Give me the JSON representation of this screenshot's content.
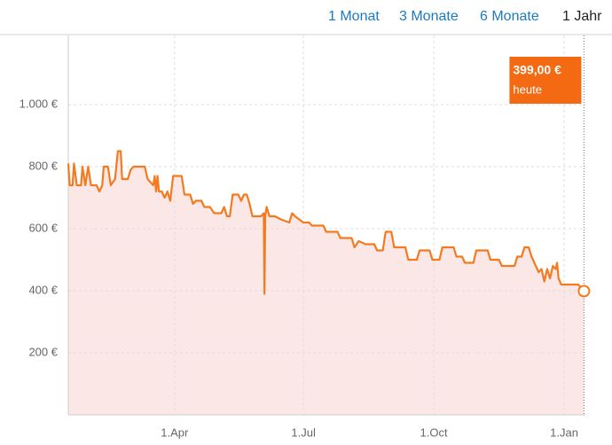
{
  "tabs": [
    "1 Monat",
    "3 Monate",
    "6 Monate",
    "1 Jahr"
  ],
  "active_tab": 3,
  "chart_data": {
    "type": "area",
    "color": "#f47a1f",
    "fill_color": "#fbe8e6",
    "grid": true,
    "xlim": [
      0,
      365
    ],
    "ylim": [
      0,
      1223
    ],
    "xticks": [
      {
        "value": 75,
        "label": "1.Apr"
      },
      {
        "value": 166,
        "label": "1.Jul"
      },
      {
        "value": 258,
        "label": "1.Oct"
      },
      {
        "value": 350,
        "label": "1.Jan"
      }
    ],
    "yticks": [
      {
        "value": 200,
        "label": "200 €"
      },
      {
        "value": 400,
        "label": "400 €"
      },
      {
        "value": 600,
        "label": "600 €"
      },
      {
        "value": 800,
        "label": "800 €"
      },
      {
        "value": 1000,
        "label": "1.000 €"
      }
    ],
    "x": [
      0,
      1,
      3,
      4,
      6,
      9,
      10,
      12,
      14,
      16,
      20,
      22,
      24,
      25,
      28,
      30,
      33,
      35,
      37,
      38,
      42,
      44,
      46,
      54,
      56,
      60,
      61,
      62,
      63,
      64,
      66,
      68,
      70,
      72,
      74,
      80,
      82,
      86,
      88,
      90,
      94,
      96,
      100,
      103,
      108,
      110,
      112,
      114,
      116,
      120,
      122,
      124,
      126,
      128,
      130,
      136,
      138,
      138.5,
      139,
      140,
      142,
      146,
      150,
      156,
      158,
      160,
      166,
      170,
      172,
      180,
      182,
      190,
      192,
      200,
      202,
      205,
      210,
      216,
      218,
      222,
      224,
      228,
      230,
      238,
      240,
      246,
      248,
      255,
      257,
      262,
      264,
      272,
      274,
      278,
      280,
      286,
      288,
      296,
      298,
      304,
      306,
      315,
      317,
      320,
      322,
      325,
      327,
      330,
      332,
      334,
      336,
      338,
      340,
      342,
      344,
      345,
      346,
      348,
      360,
      364
    ],
    "values": [
      810,
      740,
      740,
      810,
      740,
      740,
      800,
      740,
      800,
      740,
      740,
      720,
      740,
      800,
      800,
      740,
      760,
      850,
      850,
      760,
      760,
      790,
      800,
      800,
      760,
      740,
      770,
      720,
      770,
      720,
      720,
      700,
      720,
      690,
      770,
      770,
      710,
      710,
      680,
      690,
      690,
      670,
      670,
      650,
      650,
      670,
      640,
      640,
      710,
      710,
      690,
      710,
      710,
      680,
      640,
      640,
      650,
      390,
      640,
      670,
      640,
      640,
      630,
      620,
      650,
      640,
      620,
      620,
      610,
      610,
      590,
      590,
      570,
      570,
      540,
      560,
      550,
      550,
      530,
      530,
      590,
      590,
      540,
      540,
      500,
      500,
      530,
      530,
      500,
      500,
      540,
      540,
      510,
      510,
      490,
      490,
      530,
      530,
      500,
      500,
      480,
      480,
      510,
      510,
      540,
      540,
      510,
      480,
      460,
      470,
      430,
      470,
      440,
      480,
      470,
      490,
      440,
      420,
      420,
      399
    ],
    "badge_price": "399,00 €",
    "badge_label": "heute"
  }
}
